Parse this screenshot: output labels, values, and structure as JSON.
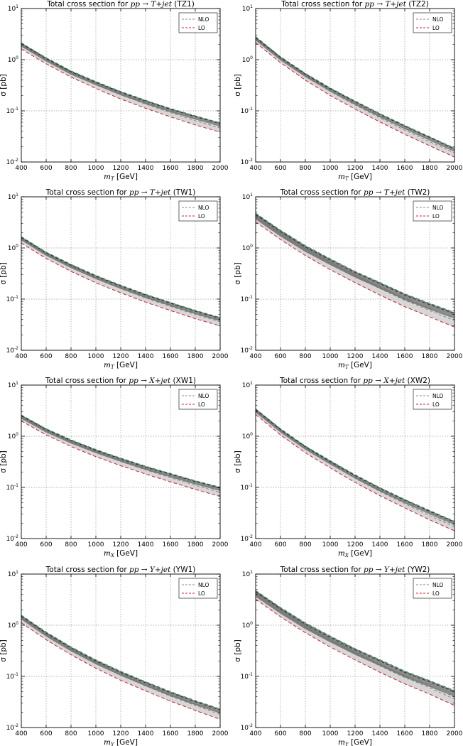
{
  "legend_labels": {
    "nlo": "NLO",
    "lo": "LO"
  },
  "y_label": "σ [pb]",
  "x_label_suffix": "[GeV]",
  "title_prefix": "Total cross section for",
  "colors": {
    "nlo_band": "#3f3f3f",
    "lo_band": "#c9c9c9",
    "nlo_line": "#2e8b57",
    "lo_line": "#cc2233",
    "nlo_dash": "#888888",
    "lo_dash": "#777777"
  },
  "chart_data": [
    {
      "type": "line",
      "title": "Total cross section for pp → T+jet (TZ1)",
      "process": "pp → T+jet",
      "tag": "(TZ1)",
      "xlabel": "m_T [GeV]",
      "mass_symbol": "T",
      "ylabel": "σ [pb]",
      "yscale": "log",
      "xlim": [
        400,
        2000
      ],
      "ylim": [
        0.01,
        10
      ],
      "grid": true,
      "legend": "top-right",
      "x": [
        400,
        600,
        800,
        1000,
        1200,
        1400,
        1600,
        1800,
        2000
      ],
      "series": [
        {
          "name": "NLO",
          "values": [
            2.05,
            1.05,
            0.58,
            0.36,
            0.23,
            0.155,
            0.107,
            0.077,
            0.056
          ],
          "band": [
            0.88,
            1.04
          ]
        },
        {
          "name": "LO",
          "values": [
            1.95,
            1.0,
            0.55,
            0.33,
            0.205,
            0.135,
            0.092,
            0.064,
            0.046
          ],
          "band": [
            0.83,
            1.08
          ]
        }
      ]
    },
    {
      "type": "line",
      "title": "Total cross section for pp → T+jet (TZ2)",
      "process": "pp → T+jet",
      "tag": "(TZ2)",
      "xlabel": "m_T [GeV]",
      "mass_symbol": "T",
      "ylabel": "σ [pb]",
      "yscale": "log",
      "xlim": [
        400,
        2000
      ],
      "ylim": [
        0.01,
        10
      ],
      "grid": true,
      "legend": "top-right",
      "x": [
        400,
        600,
        800,
        1000,
        1200,
        1400,
        1600,
        1800,
        2000
      ],
      "series": [
        {
          "name": "NLO",
          "values": [
            2.7,
            1.1,
            0.52,
            0.27,
            0.15,
            0.085,
            0.05,
            0.03,
            0.018
          ],
          "band": [
            0.88,
            1.04
          ]
        },
        {
          "name": "LO",
          "values": [
            2.6,
            1.05,
            0.48,
            0.24,
            0.13,
            0.073,
            0.042,
            0.025,
            0.015
          ],
          "band": [
            0.83,
            1.08
          ]
        }
      ]
    },
    {
      "type": "line",
      "title": "Total cross section for pp → T+jet (TW1)",
      "process": "pp → T+jet",
      "tag": "(TW1)",
      "xlabel": "m_T [GeV]",
      "mass_symbol": "T",
      "ylabel": "σ [pb]",
      "yscale": "log",
      "xlim": [
        400,
        2000
      ],
      "ylim": [
        0.01,
        10
      ],
      "grid": true,
      "legend": "top-right",
      "x": [
        400,
        600,
        800,
        1000,
        1200,
        1400,
        1600,
        1800,
        2000
      ],
      "series": [
        {
          "name": "NLO",
          "values": [
            1.6,
            0.8,
            0.46,
            0.28,
            0.18,
            0.12,
            0.083,
            0.058,
            0.042
          ],
          "band": [
            0.88,
            1.04
          ]
        },
        {
          "name": "LO",
          "values": [
            1.5,
            0.75,
            0.42,
            0.25,
            0.16,
            0.105,
            0.072,
            0.05,
            0.036
          ],
          "band": [
            0.83,
            1.08
          ]
        }
      ]
    },
    {
      "type": "line",
      "title": "Total cross section for pp → T+jet (TW2)",
      "process": "pp → T+jet",
      "tag": "(TW2)",
      "xlabel": "m_T [GeV]",
      "mass_symbol": "T",
      "ylabel": "σ [pb]",
      "yscale": "log",
      "xlim": [
        400,
        2000
      ],
      "ylim": [
        0.01,
        10
      ],
      "grid": true,
      "legend": "top-right",
      "x": [
        400,
        600,
        800,
        1000,
        1200,
        1400,
        1600,
        1800,
        2000
      ],
      "series": [
        {
          "name": "NLO",
          "values": [
            4.5,
            2.1,
            1.05,
            0.58,
            0.33,
            0.2,
            0.12,
            0.078,
            0.052
          ],
          "band": [
            0.8,
            1.06
          ]
        },
        {
          "name": "LO",
          "values": [
            4.3,
            1.95,
            0.95,
            0.5,
            0.28,
            0.16,
            0.095,
            0.06,
            0.038
          ],
          "band": [
            0.75,
            1.1
          ]
        }
      ]
    },
    {
      "type": "line",
      "title": "Total cross section for pp → X+jet (XW1)",
      "process": "pp → X+jet",
      "tag": "(XW1)",
      "xlabel": "m_X [GeV]",
      "mass_symbol": "X",
      "ylabel": "σ [pb]",
      "yscale": "log",
      "xlim": [
        400,
        2000
      ],
      "ylim": [
        0.01,
        10
      ],
      "grid": true,
      "legend": "top-right",
      "x": [
        400,
        600,
        800,
        1000,
        1200,
        1400,
        1600,
        1800,
        2000
      ],
      "series": [
        {
          "name": "NLO",
          "values": [
            2.5,
            1.35,
            0.82,
            0.53,
            0.36,
            0.25,
            0.18,
            0.13,
            0.097
          ],
          "band": [
            0.88,
            1.04
          ]
        },
        {
          "name": "LO",
          "values": [
            2.4,
            1.28,
            0.76,
            0.48,
            0.32,
            0.22,
            0.155,
            0.11,
            0.08
          ],
          "band": [
            0.83,
            1.08
          ]
        }
      ]
    },
    {
      "type": "line",
      "title": "Total cross section for pp → X+jet (XW2)",
      "process": "pp → X+jet",
      "tag": "(XW2)",
      "xlabel": "m_X [GeV]",
      "mass_symbol": "X",
      "ylabel": "σ [pb]",
      "yscale": "log",
      "xlim": [
        400,
        2000
      ],
      "ylim": [
        0.01,
        10
      ],
      "grid": true,
      "legend": "top-right",
      "x": [
        400,
        600,
        800,
        1000,
        1200,
        1400,
        1600,
        1800,
        2000
      ],
      "series": [
        {
          "name": "NLO",
          "values": [
            3.3,
            1.35,
            0.62,
            0.32,
            0.17,
            0.095,
            0.056,
            0.034,
            0.021
          ],
          "band": [
            0.88,
            1.04
          ]
        },
        {
          "name": "LO",
          "values": [
            3.2,
            1.28,
            0.57,
            0.29,
            0.15,
            0.083,
            0.048,
            0.028,
            0.017
          ],
          "band": [
            0.83,
            1.08
          ]
        }
      ]
    },
    {
      "type": "line",
      "title": "Total cross section for pp → Y+jet (YW1)",
      "process": "pp → Y+jet",
      "tag": "(YW1)",
      "xlabel": "m_Y [GeV]",
      "mass_symbol": "Y",
      "ylabel": "σ [pb]",
      "yscale": "log",
      "xlim": [
        400,
        2000
      ],
      "ylim": [
        0.01,
        10
      ],
      "grid": true,
      "legend": "top-right",
      "x": [
        400,
        600,
        800,
        1000,
        1200,
        1400,
        1600,
        1800,
        2000
      ],
      "series": [
        {
          "name": "NLO",
          "values": [
            1.5,
            0.7,
            0.36,
            0.2,
            0.12,
            0.075,
            0.048,
            0.032,
            0.022
          ],
          "band": [
            0.86,
            1.05
          ]
        },
        {
          "name": "LO",
          "values": [
            1.4,
            0.65,
            0.33,
            0.18,
            0.105,
            0.065,
            0.041,
            0.027,
            0.018
          ],
          "band": [
            0.8,
            1.09
          ]
        }
      ]
    },
    {
      "type": "line",
      "title": "Total cross section for pp → Y+jet (YW2)",
      "process": "pp → Y+jet",
      "tag": "(YW2)",
      "xlabel": "m_Y [GeV]",
      "mass_symbol": "Y",
      "ylabel": "σ [pb]",
      "yscale": "log",
      "xlim": [
        400,
        2000
      ],
      "ylim": [
        0.01,
        10
      ],
      "grid": true,
      "legend": "top-right",
      "x": [
        400,
        600,
        800,
        1000,
        1200,
        1400,
        1600,
        1800,
        2000
      ],
      "series": [
        {
          "name": "NLO",
          "values": [
            4.5,
            2.1,
            1.05,
            0.58,
            0.33,
            0.2,
            0.12,
            0.078,
            0.05
          ],
          "band": [
            0.8,
            1.06
          ]
        },
        {
          "name": "LO",
          "values": [
            4.3,
            1.95,
            0.95,
            0.5,
            0.28,
            0.16,
            0.095,
            0.06,
            0.036
          ],
          "band": [
            0.75,
            1.1
          ]
        }
      ]
    }
  ]
}
